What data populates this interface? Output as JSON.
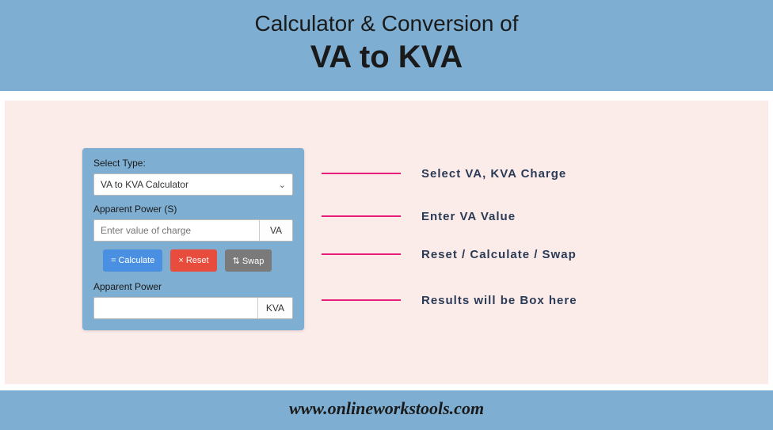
{
  "header": {
    "line1": "Calculator & Conversion of",
    "line2": "VA to KVA",
    "bg_color": "#7eaed1",
    "text_color": "#1a1a1a"
  },
  "main": {
    "bg_color": "#fbecea"
  },
  "calculator": {
    "bg_color": "#7eaed1",
    "select_label": "Select Type:",
    "select_value": "VA to KVA Calculator",
    "input_label": "Apparent Power (S)",
    "input_placeholder": "Enter value of charge",
    "input_unit": "VA",
    "buttons": {
      "calculate": "= Calculate",
      "reset": "× Reset",
      "swap": "⇅ Swap",
      "calc_color": "#4a90e2",
      "reset_color": "#e74c3c",
      "swap_color": "#7a7a7a"
    },
    "output_label": "Apparent Power",
    "output_unit": "KVA"
  },
  "annotations": {
    "line_color": "#e91e7a",
    "text_color": "#2b3a55",
    "items": {
      "0": "Select VA, KVA Charge",
      "1": "Enter VA Value",
      "2": "Reset / Calculate / Swap",
      "3": "Results will be Box here"
    }
  },
  "footer": {
    "text": "www.onlineworkstools.com",
    "bg_color": "#7eaed1"
  }
}
